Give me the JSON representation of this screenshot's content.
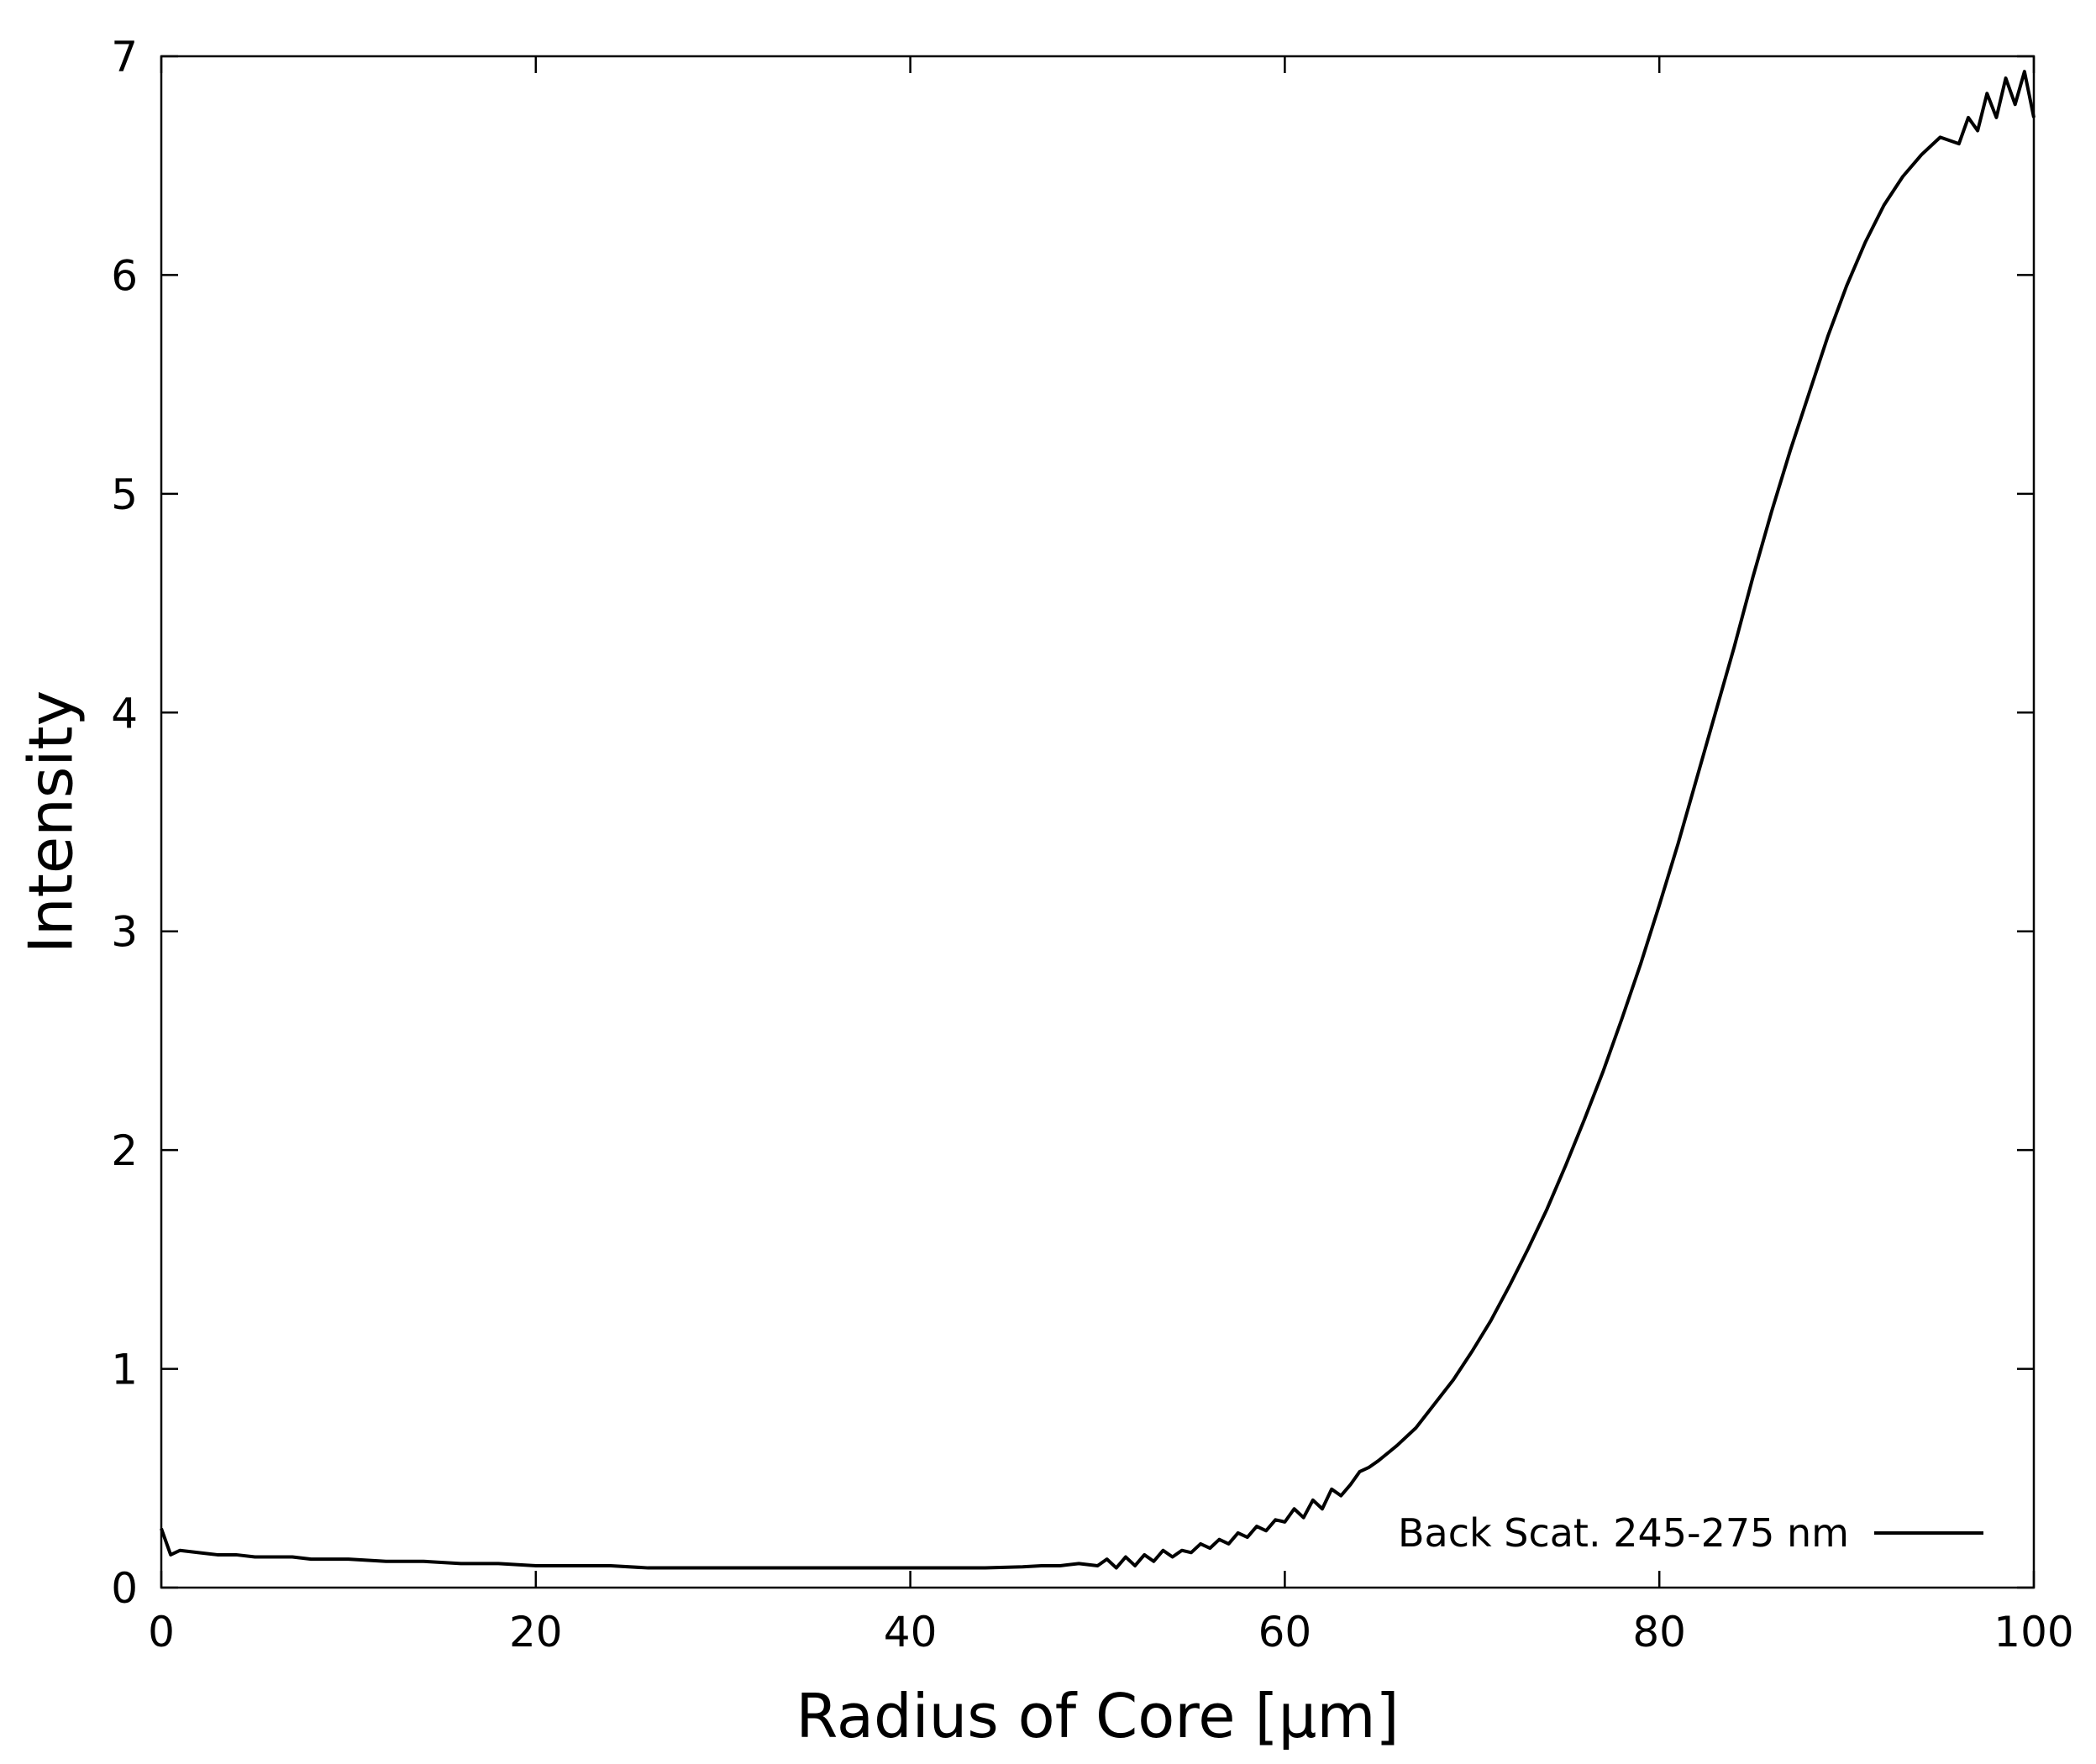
{
  "chart_data": {
    "type": "line",
    "title": "",
    "xlabel": "Radius of Core [μm]",
    "ylabel": "Intensity",
    "xlim": [
      0,
      100
    ],
    "ylim": [
      0,
      7
    ],
    "x_ticks": [
      "0",
      "20",
      "40",
      "60",
      "80",
      "100"
    ],
    "y_ticks": [
      "0",
      "1",
      "2",
      "3",
      "4",
      "5",
      "6",
      "7"
    ],
    "grid": false,
    "legend_position": "bottom-right",
    "series": [
      {
        "name": "Back Scat. 245-275 nm",
        "color": "#000000",
        "x": [
          0,
          0.5,
          1,
          2,
          3,
          4,
          5,
          6,
          7,
          8,
          10,
          12,
          14,
          16,
          18,
          20,
          22,
          24,
          26,
          28,
          30,
          32,
          34,
          36,
          38,
          40,
          42,
          44,
          46,
          47,
          48,
          49,
          50,
          50.5,
          51,
          51.5,
          52,
          52.5,
          53,
          53.5,
          54,
          54.5,
          55,
          55.5,
          56,
          56.5,
          57,
          57.5,
          58,
          58.5,
          59,
          59.5,
          60,
          60.5,
          61,
          61.5,
          62,
          62.5,
          63,
          63.5,
          64,
          64.5,
          65,
          66,
          67,
          68,
          69,
          70,
          71,
          72,
          73,
          74,
          75,
          76,
          77,
          78,
          79,
          80,
          81,
          82,
          83,
          84,
          85,
          86,
          87,
          88,
          89,
          90,
          91,
          92,
          93,
          94,
          95,
          96,
          96.5,
          97,
          97.5,
          98,
          98.5,
          99,
          99.5,
          100
        ],
        "y": [
          0.27,
          0.15,
          0.17,
          0.16,
          0.15,
          0.15,
          0.14,
          0.14,
          0.14,
          0.13,
          0.13,
          0.12,
          0.12,
          0.11,
          0.11,
          0.1,
          0.1,
          0.1,
          0.09,
          0.09,
          0.09,
          0.09,
          0.09,
          0.09,
          0.09,
          0.09,
          0.09,
          0.09,
          0.095,
          0.1,
          0.1,
          0.11,
          0.1,
          0.13,
          0.09,
          0.14,
          0.1,
          0.15,
          0.12,
          0.17,
          0.14,
          0.17,
          0.16,
          0.2,
          0.18,
          0.22,
          0.2,
          0.25,
          0.23,
          0.28,
          0.26,
          0.31,
          0.3,
          0.36,
          0.32,
          0.4,
          0.36,
          0.45,
          0.42,
          0.47,
          0.53,
          0.55,
          0.58,
          0.65,
          0.73,
          0.84,
          0.95,
          1.08,
          1.22,
          1.38,
          1.55,
          1.73,
          1.93,
          2.14,
          2.36,
          2.6,
          2.85,
          3.12,
          3.4,
          3.7,
          4.0,
          4.3,
          4.62,
          4.92,
          5.2,
          5.46,
          5.72,
          5.95,
          6.15,
          6.32,
          6.45,
          6.55,
          6.63,
          6.6,
          6.72,
          6.66,
          6.83,
          6.72,
          6.9,
          6.78,
          6.93,
          6.72
        ]
      }
    ]
  }
}
